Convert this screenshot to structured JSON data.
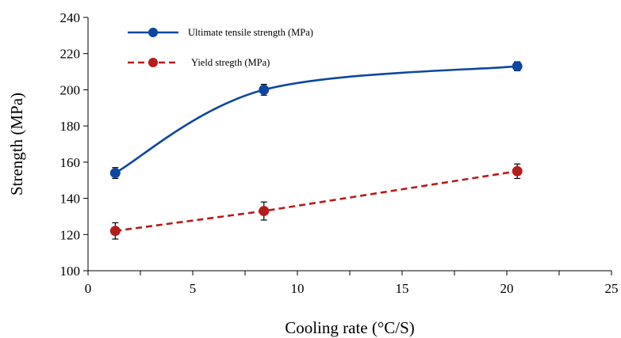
{
  "chart_data": {
    "type": "line",
    "xlabel": "Cooling rate (°C/S)",
    "ylabel": "Strength (MPa)",
    "xlim": [
      0,
      25
    ],
    "ylim": [
      100,
      240
    ],
    "x_ticks": [
      0,
      5,
      10,
      15,
      20,
      25
    ],
    "y_ticks": [
      100,
      120,
      140,
      160,
      180,
      200,
      220,
      240
    ],
    "grid": false,
    "legend_position": "top-left",
    "series": [
      {
        "name": "Ultimate tensile strength (MPa)",
        "color": "#0d47a1",
        "line_style": "solid",
        "smooth": true,
        "marker": "circle",
        "x": [
          1.3,
          8.4,
          20.5
        ],
        "y": [
          154,
          200,
          213
        ],
        "error": [
          3,
          3,
          2.5
        ]
      },
      {
        "name": "Yield stregth (MPa)",
        "color": "#b71c1c",
        "line_style": "dashed",
        "smooth": false,
        "marker": "circle",
        "x": [
          1.3,
          8.4,
          20.5
        ],
        "y": [
          122,
          133,
          155
        ],
        "error": [
          4.5,
          5,
          4
        ]
      }
    ]
  }
}
